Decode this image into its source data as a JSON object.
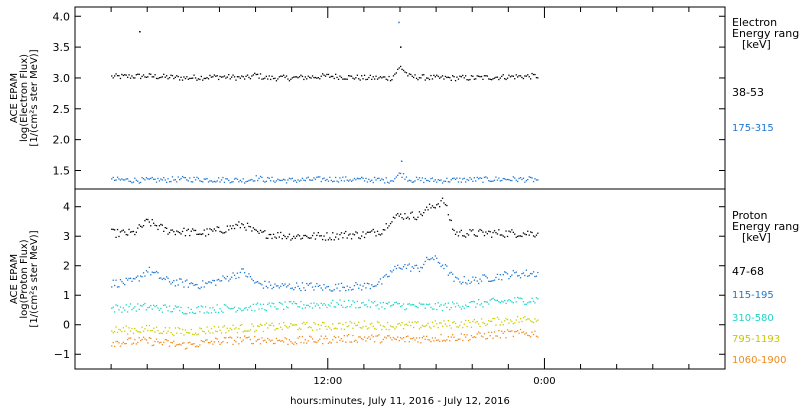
{
  "chart_data": [
    {
      "type": "scatter",
      "panel": "electron",
      "ylabel_lines": [
        "ACE EPAM",
        "log(Electron Flux)",
        "[1/(cm²s ster MeV)]"
      ],
      "legend_title_lines": [
        "Electron",
        "Energy ranges",
        "[keV]"
      ],
      "ylim": [
        1.2,
        4.15
      ],
      "yticks": [
        1.5,
        2.0,
        2.5,
        3.0,
        3.5,
        4.0
      ],
      "ytick_labels": [
        "1.5",
        "2.0",
        "2.5",
        "3.0",
        "3.5",
        "4.0"
      ],
      "series": [
        {
          "name": "38-53",
          "color": "#000000",
          "x": [
            0,
            2,
            4,
            6,
            7.5,
            8,
            8.5,
            10,
            12,
            14,
            15.5,
            16,
            16.5,
            18,
            20,
            22,
            23.6
          ],
          "y": [
            3.02,
            3.03,
            3.0,
            3.02,
            3.0,
            3.05,
            3.0,
            3.0,
            3.03,
            3.0,
            3.0,
            3.18,
            3.02,
            3.0,
            3.0,
            3.02,
            3.03
          ]
        },
        {
          "name": "175-315",
          "color": "#1f77d0",
          "x": [
            0,
            2,
            4,
            6,
            7.5,
            8,
            8.5,
            10,
            12,
            14,
            15.5,
            16,
            16.5,
            18,
            20,
            22,
            23.6
          ],
          "y": [
            1.35,
            1.34,
            1.36,
            1.35,
            1.34,
            1.38,
            1.35,
            1.34,
            1.36,
            1.35,
            1.34,
            1.45,
            1.35,
            1.34,
            1.35,
            1.36,
            1.35
          ]
        }
      ],
      "outliers": [
        {
          "x": 1.55,
          "y": 3.75,
          "color": "#000000"
        },
        {
          "x": 15.9,
          "y": 3.9,
          "color": "#1f77d0"
        },
        {
          "x": 16.0,
          "y": 3.5,
          "color": "#000000"
        },
        {
          "x": 16.05,
          "y": 1.65,
          "color": "#1f77d0"
        }
      ]
    },
    {
      "type": "scatter",
      "panel": "proton",
      "ylabel_lines": [
        "ACE EPAM",
        "log(Proton Flux)",
        "[1/(cm²s ster MeV)]"
      ],
      "legend_title_lines": [
        "Proton",
        "Energy ranges",
        "[keV]"
      ],
      "ylim": [
        -1.5,
        4.6
      ],
      "yticks": [
        -1,
        0,
        1,
        2,
        3,
        4
      ],
      "ytick_labels": [
        "−1",
        "0",
        "1",
        "2",
        "3",
        "4"
      ],
      "series": [
        {
          "name": "47-68",
          "color": "#000000",
          "x": [
            0,
            1.2,
            2,
            3,
            4,
            5,
            6,
            7.3,
            8,
            9,
            10,
            11,
            12,
            13,
            14,
            15,
            15.5,
            16,
            17,
            17.7,
            18.4,
            19,
            20,
            21,
            22,
            23.6
          ],
          "y": [
            3.1,
            3.1,
            3.5,
            3.2,
            3.15,
            3.1,
            3.2,
            3.4,
            3.1,
            3.05,
            3.0,
            3.0,
            3.0,
            3.05,
            3.05,
            3.2,
            3.6,
            3.7,
            3.7,
            4.0,
            4.2,
            3.1,
            3.1,
            3.1,
            3.1,
            3.1
          ]
        },
        {
          "name": "115-195",
          "color": "#1f77d0",
          "x": [
            0,
            1.2,
            2,
            3,
            4,
            5,
            6,
            7.3,
            8,
            9,
            10,
            11,
            12,
            13,
            14,
            15,
            15.5,
            16,
            17,
            17.7,
            18.4,
            19,
            20,
            21,
            22,
            23.6
          ],
          "y": [
            1.4,
            1.45,
            1.85,
            1.5,
            1.4,
            1.35,
            1.5,
            1.8,
            1.4,
            1.3,
            1.3,
            1.3,
            1.25,
            1.3,
            1.3,
            1.45,
            1.8,
            2.0,
            1.9,
            2.3,
            2.0,
            1.5,
            1.5,
            1.6,
            1.7,
            1.75
          ]
        },
        {
          "name": "310-580",
          "color": "#22d3c8",
          "x": [
            0,
            2,
            4,
            6,
            8,
            10,
            12,
            14,
            16,
            18,
            20,
            22,
            23.6
          ],
          "y": [
            0.55,
            0.6,
            0.5,
            0.55,
            0.6,
            0.65,
            0.7,
            0.7,
            0.65,
            0.6,
            0.7,
            0.8,
            0.85
          ]
        },
        {
          "name": "795-1193",
          "color": "#cccc00",
          "x": [
            0,
            2,
            4,
            6,
            8,
            10,
            12,
            14,
            16,
            18,
            20,
            22,
            23.6
          ],
          "y": [
            -0.2,
            -0.15,
            -0.25,
            -0.15,
            -0.1,
            -0.05,
            -0.05,
            0.0,
            -0.05,
            0.0,
            0.05,
            0.15,
            0.2
          ]
        },
        {
          "name": "1060-1900",
          "color": "#f08a1c",
          "x": [
            0,
            2,
            4,
            6,
            8,
            10,
            12,
            14,
            16,
            18,
            20,
            22,
            23.6
          ],
          "y": [
            -0.6,
            -0.55,
            -0.7,
            -0.55,
            -0.5,
            -0.55,
            -0.5,
            -0.45,
            -0.5,
            -0.45,
            -0.4,
            -0.3,
            -0.3
          ]
        }
      ]
    }
  ],
  "x_axis": {
    "xlim": [
      -2,
      34
    ],
    "major_ticks": [
      12,
      24
    ],
    "major_tick_labels": [
      "12:00",
      "0:00"
    ],
    "minor_ticks": [
      0,
      2,
      4,
      6,
      8,
      10,
      14,
      16,
      18,
      20,
      22,
      26,
      28,
      30,
      32
    ],
    "xlabel": "hours:minutes, July 11, 2016 - July 12, 2016"
  }
}
